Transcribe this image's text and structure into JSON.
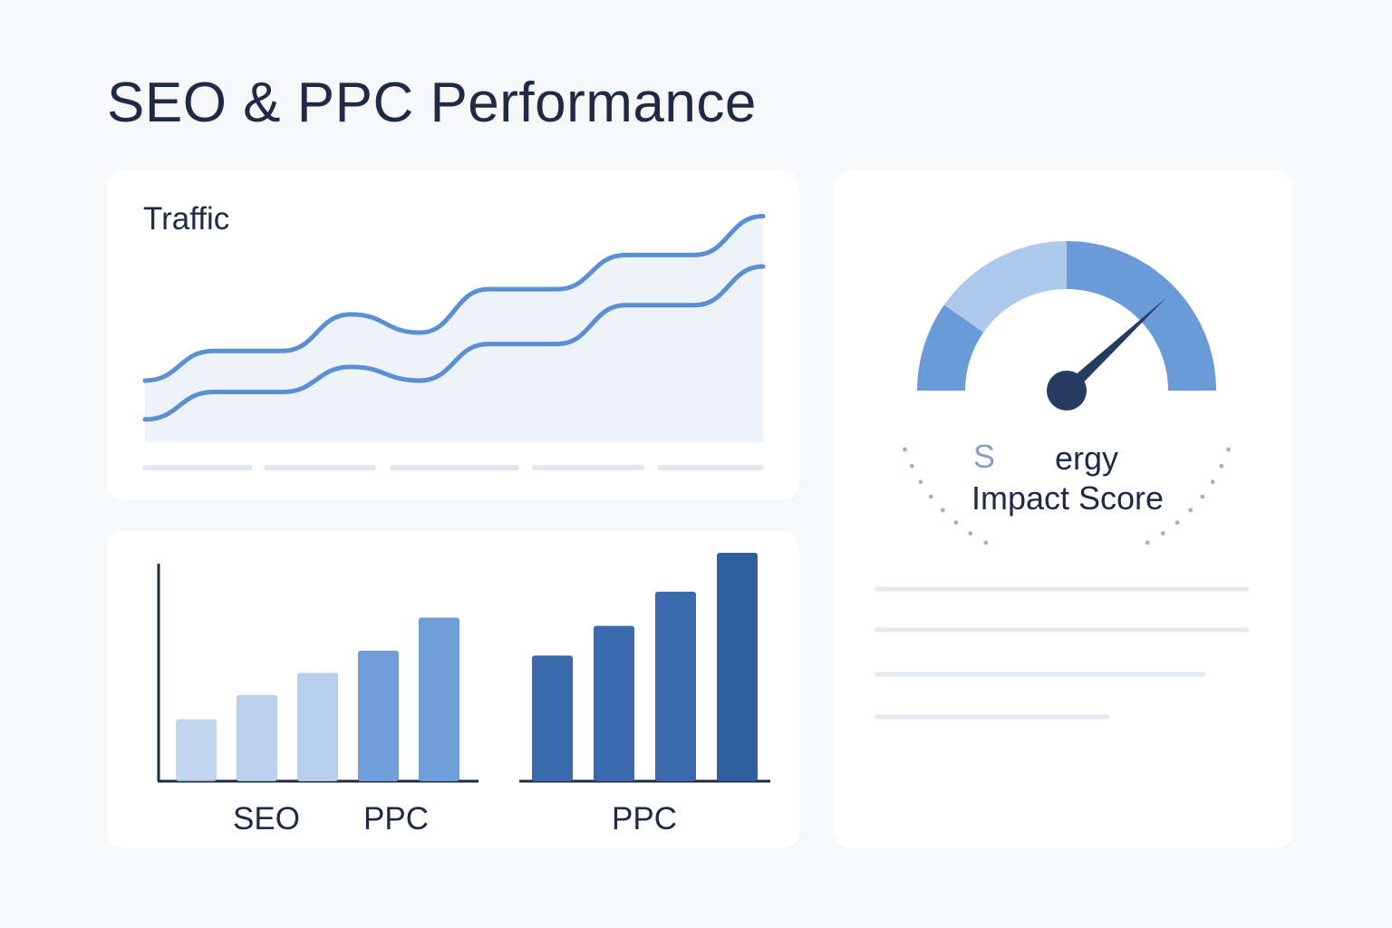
{
  "page": {
    "title": "SEO & PPC Performance"
  },
  "colors": {
    "line": "#5b8fd4",
    "area": "#eef3fa",
    "axis": "#1f2a44",
    "bar_light": "#b7cfec",
    "bar_mid": "#6f9ed9",
    "bar_dark": "#3a6aad",
    "bar_darkest": "#2f5f9e",
    "gauge_mid": "#6a9bd8",
    "gauge_light": "#adc9ec",
    "needle": "#273a60",
    "placeholder": "#e3e7ee"
  },
  "traffic": {
    "title": "Traffic",
    "chart_data": {
      "type": "line",
      "title": "Traffic",
      "x": [
        0,
        1,
        2,
        3,
        4,
        5,
        6,
        7,
        8,
        9
      ],
      "ylim": [
        0,
        100
      ],
      "series": [
        {
          "values": [
            27,
            40,
            40,
            56,
            48,
            67,
            67,
            82,
            82,
            99
          ]
        },
        {
          "values": [
            10,
            22,
            22,
            33,
            27,
            43,
            43,
            60,
            60,
            77
          ]
        }
      ]
    }
  },
  "bars": {
    "chart_data": [
      {
        "type": "bar",
        "categories": [
          "",
          "",
          "",
          "",
          ""
        ],
        "values": [
          28,
          39,
          49,
          59,
          74
        ],
        "ylim": [
          0,
          100
        ],
        "tick_labels": [
          "SEO",
          "PPC"
        ]
      },
      {
        "type": "bar",
        "categories": [
          "",
          "",
          "",
          ""
        ],
        "values": [
          55,
          68,
          83,
          100
        ],
        "ylim": [
          0,
          100
        ],
        "tick_labels": [
          "PPC"
        ]
      }
    ]
  },
  "gauge": {
    "line1_left": "S",
    "line1_right": "ergy",
    "line2": "Impact Score",
    "value_fraction": 0.8
  }
}
